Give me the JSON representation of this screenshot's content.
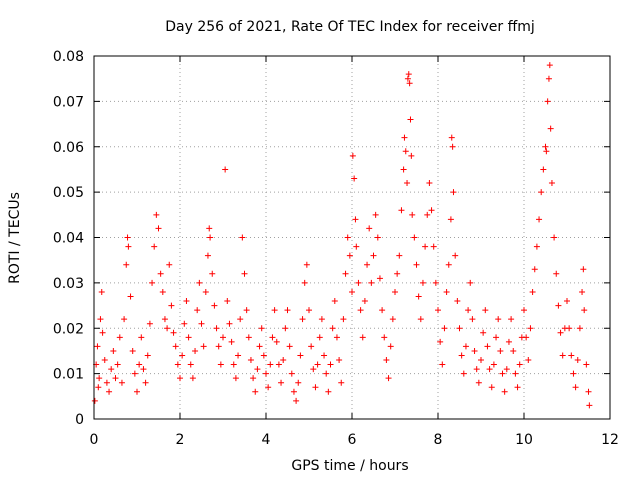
{
  "chart_data": {
    "type": "scatter",
    "title": "Day 256 of 2021, Rate Of TEC Index for receiver ffmj",
    "xlabel": "GPS time / hours",
    "ylabel": "ROTI / TECUs",
    "xlim": [
      0,
      12
    ],
    "ylim": [
      0,
      0.08
    ],
    "x_ticks": [
      0,
      2,
      4,
      6,
      8,
      10,
      12
    ],
    "x_tick_labels": [
      "0",
      "2",
      "4",
      "6",
      "8",
      "10",
      "12"
    ],
    "y_ticks": [
      0,
      0.01,
      0.02,
      0.03,
      0.04,
      0.05,
      0.06,
      0.07,
      0.08
    ],
    "y_tick_labels": [
      "0",
      "0.01",
      "0.02",
      "0.03",
      "0.04",
      "0.05",
      "0.06",
      "0.07",
      "0.08"
    ],
    "grid": true,
    "marker": "+",
    "series": [
      {
        "name": "ROTI",
        "color": "#ff0000",
        "points": [
          [
            0.02,
            0.004
          ],
          [
            0.05,
            0.012
          ],
          [
            0.08,
            0.016
          ],
          [
            0.1,
            0.007
          ],
          [
            0.12,
            0.009
          ],
          [
            0.15,
            0.022
          ],
          [
            0.18,
            0.028
          ],
          [
            0.2,
            0.019
          ],
          [
            0.25,
            0.013
          ],
          [
            0.3,
            0.008
          ],
          [
            0.35,
            0.006
          ],
          [
            0.4,
            0.011
          ],
          [
            0.45,
            0.015
          ],
          [
            0.5,
            0.009
          ],
          [
            0.55,
            0.012
          ],
          [
            0.6,
            0.018
          ],
          [
            0.65,
            0.008
          ],
          [
            0.7,
            0.022
          ],
          [
            0.75,
            0.034
          ],
          [
            0.78,
            0.04
          ],
          [
            0.8,
            0.038
          ],
          [
            0.85,
            0.027
          ],
          [
            0.9,
            0.015
          ],
          [
            0.95,
            0.01
          ],
          [
            1.0,
            0.006
          ],
          [
            1.05,
            0.012
          ],
          [
            1.1,
            0.018
          ],
          [
            1.15,
            0.011
          ],
          [
            1.2,
            0.008
          ],
          [
            1.25,
            0.014
          ],
          [
            1.3,
            0.021
          ],
          [
            1.35,
            0.03
          ],
          [
            1.4,
            0.038
          ],
          [
            1.45,
            0.045
          ],
          [
            1.5,
            0.042
          ],
          [
            1.55,
            0.032
          ],
          [
            1.6,
            0.028
          ],
          [
            1.65,
            0.022
          ],
          [
            1.7,
            0.02
          ],
          [
            1.75,
            0.034
          ],
          [
            1.8,
            0.025
          ],
          [
            1.85,
            0.019
          ],
          [
            1.9,
            0.016
          ],
          [
            1.95,
            0.012
          ],
          [
            2.0,
            0.009
          ],
          [
            2.05,
            0.014
          ],
          [
            2.1,
            0.021
          ],
          [
            2.15,
            0.026
          ],
          [
            2.2,
            0.018
          ],
          [
            2.25,
            0.012
          ],
          [
            2.3,
            0.009
          ],
          [
            2.35,
            0.015
          ],
          [
            2.4,
            0.024
          ],
          [
            2.45,
            0.03
          ],
          [
            2.5,
            0.021
          ],
          [
            2.55,
            0.016
          ],
          [
            2.6,
            0.028
          ],
          [
            2.65,
            0.036
          ],
          [
            2.68,
            0.042
          ],
          [
            2.7,
            0.04
          ],
          [
            2.75,
            0.032
          ],
          [
            2.8,
            0.025
          ],
          [
            2.85,
            0.02
          ],
          [
            2.9,
            0.016
          ],
          [
            2.95,
            0.012
          ],
          [
            3.0,
            0.018
          ],
          [
            3.05,
            0.055
          ],
          [
            3.1,
            0.026
          ],
          [
            3.15,
            0.021
          ],
          [
            3.2,
            0.017
          ],
          [
            3.25,
            0.012
          ],
          [
            3.3,
            0.009
          ],
          [
            3.35,
            0.014
          ],
          [
            3.4,
            0.022
          ],
          [
            3.45,
            0.04
          ],
          [
            3.5,
            0.032
          ],
          [
            3.55,
            0.024
          ],
          [
            3.6,
            0.018
          ],
          [
            3.65,
            0.013
          ],
          [
            3.7,
            0.009
          ],
          [
            3.75,
            0.006
          ],
          [
            3.8,
            0.011
          ],
          [
            3.85,
            0.016
          ],
          [
            3.9,
            0.02
          ],
          [
            3.95,
            0.014
          ],
          [
            4.0,
            0.01
          ],
          [
            4.05,
            0.007
          ],
          [
            4.1,
            0.012
          ],
          [
            4.15,
            0.018
          ],
          [
            4.2,
            0.024
          ],
          [
            4.25,
            0.017
          ],
          [
            4.3,
            0.012
          ],
          [
            4.35,
            0.008
          ],
          [
            4.4,
            0.013
          ],
          [
            4.45,
            0.02
          ],
          [
            4.5,
            0.024
          ],
          [
            4.55,
            0.016
          ],
          [
            4.6,
            0.01
          ],
          [
            4.65,
            0.006
          ],
          [
            4.7,
            0.004
          ],
          [
            4.75,
            0.008
          ],
          [
            4.8,
            0.014
          ],
          [
            4.85,
            0.022
          ],
          [
            4.9,
            0.03
          ],
          [
            4.95,
            0.034
          ],
          [
            5.0,
            0.024
          ],
          [
            5.05,
            0.016
          ],
          [
            5.1,
            0.011
          ],
          [
            5.15,
            0.007
          ],
          [
            5.2,
            0.012
          ],
          [
            5.25,
            0.018
          ],
          [
            5.3,
            0.022
          ],
          [
            5.35,
            0.014
          ],
          [
            5.4,
            0.01
          ],
          [
            5.45,
            0.006
          ],
          [
            5.5,
            0.012
          ],
          [
            5.55,
            0.02
          ],
          [
            5.6,
            0.026
          ],
          [
            5.65,
            0.018
          ],
          [
            5.7,
            0.013
          ],
          [
            5.75,
            0.008
          ],
          [
            5.8,
            0.022
          ],
          [
            5.85,
            0.032
          ],
          [
            5.9,
            0.04
          ],
          [
            5.95,
            0.036
          ],
          [
            6.0,
            0.028
          ],
          [
            6.02,
            0.058
          ],
          [
            6.05,
            0.053
          ],
          [
            6.08,
            0.044
          ],
          [
            6.1,
            0.038
          ],
          [
            6.15,
            0.03
          ],
          [
            6.2,
            0.024
          ],
          [
            6.25,
            0.018
          ],
          [
            6.3,
            0.026
          ],
          [
            6.35,
            0.034
          ],
          [
            6.4,
            0.042
          ],
          [
            6.45,
            0.03
          ],
          [
            6.5,
            0.036
          ],
          [
            6.55,
            0.045
          ],
          [
            6.6,
            0.04
          ],
          [
            6.65,
            0.031
          ],
          [
            6.7,
            0.024
          ],
          [
            6.75,
            0.018
          ],
          [
            6.8,
            0.013
          ],
          [
            6.85,
            0.009
          ],
          [
            6.9,
            0.016
          ],
          [
            6.95,
            0.022
          ],
          [
            7.0,
            0.028
          ],
          [
            7.05,
            0.032
          ],
          [
            7.1,
            0.036
          ],
          [
            7.15,
            0.046
          ],
          [
            7.2,
            0.055
          ],
          [
            7.22,
            0.062
          ],
          [
            7.25,
            0.059
          ],
          [
            7.28,
            0.052
          ],
          [
            7.3,
            0.075
          ],
          [
            7.32,
            0.076
          ],
          [
            7.34,
            0.074
          ],
          [
            7.36,
            0.066
          ],
          [
            7.38,
            0.058
          ],
          [
            7.4,
            0.045
          ],
          [
            7.45,
            0.04
          ],
          [
            7.5,
            0.034
          ],
          [
            7.55,
            0.027
          ],
          [
            7.6,
            0.022
          ],
          [
            7.65,
            0.03
          ],
          [
            7.7,
            0.038
          ],
          [
            7.75,
            0.045
          ],
          [
            7.8,
            0.052
          ],
          [
            7.85,
            0.046
          ],
          [
            7.9,
            0.038
          ],
          [
            7.95,
            0.03
          ],
          [
            8.0,
            0.024
          ],
          [
            8.05,
            0.017
          ],
          [
            8.1,
            0.012
          ],
          [
            8.15,
            0.02
          ],
          [
            8.2,
            0.028
          ],
          [
            8.25,
            0.034
          ],
          [
            8.3,
            0.044
          ],
          [
            8.32,
            0.062
          ],
          [
            8.34,
            0.06
          ],
          [
            8.36,
            0.05
          ],
          [
            8.4,
            0.036
          ],
          [
            8.45,
            0.026
          ],
          [
            8.5,
            0.02
          ],
          [
            8.55,
            0.014
          ],
          [
            8.6,
            0.01
          ],
          [
            8.65,
            0.016
          ],
          [
            8.7,
            0.024
          ],
          [
            8.75,
            0.03
          ],
          [
            8.8,
            0.022
          ],
          [
            8.85,
            0.015
          ],
          [
            8.9,
            0.011
          ],
          [
            8.95,
            0.008
          ],
          [
            9.0,
            0.013
          ],
          [
            9.05,
            0.019
          ],
          [
            9.1,
            0.024
          ],
          [
            9.15,
            0.016
          ],
          [
            9.2,
            0.011
          ],
          [
            9.25,
            0.007
          ],
          [
            9.3,
            0.012
          ],
          [
            9.35,
            0.018
          ],
          [
            9.4,
            0.022
          ],
          [
            9.45,
            0.015
          ],
          [
            9.5,
            0.01
          ],
          [
            9.55,
            0.006
          ],
          [
            9.6,
            0.011
          ],
          [
            9.65,
            0.017
          ],
          [
            9.7,
            0.022
          ],
          [
            9.75,
            0.015
          ],
          [
            9.8,
            0.01
          ],
          [
            9.85,
            0.007
          ],
          [
            9.9,
            0.012
          ],
          [
            9.95,
            0.018
          ],
          [
            10.0,
            0.024
          ],
          [
            10.05,
            0.018
          ],
          [
            10.1,
            0.013
          ],
          [
            10.15,
            0.02
          ],
          [
            10.2,
            0.028
          ],
          [
            10.25,
            0.033
          ],
          [
            10.3,
            0.038
          ],
          [
            10.35,
            0.044
          ],
          [
            10.4,
            0.05
          ],
          [
            10.45,
            0.055
          ],
          [
            10.5,
            0.06
          ],
          [
            10.52,
            0.059
          ],
          [
            10.55,
            0.07
          ],
          [
            10.58,
            0.075
          ],
          [
            10.6,
            0.078
          ],
          [
            10.62,
            0.064
          ],
          [
            10.65,
            0.052
          ],
          [
            10.7,
            0.04
          ],
          [
            10.75,
            0.032
          ],
          [
            10.8,
            0.025
          ],
          [
            10.85,
            0.019
          ],
          [
            10.9,
            0.014
          ],
          [
            10.95,
            0.02
          ],
          [
            11.0,
            0.026
          ],
          [
            11.05,
            0.02
          ],
          [
            11.1,
            0.014
          ],
          [
            11.15,
            0.01
          ],
          [
            11.2,
            0.007
          ],
          [
            11.25,
            0.013
          ],
          [
            11.3,
            0.02
          ],
          [
            11.35,
            0.028
          ],
          [
            11.38,
            0.033
          ],
          [
            11.4,
            0.024
          ],
          [
            11.45,
            0.012
          ],
          [
            11.5,
            0.006
          ],
          [
            11.52,
            0.003
          ]
        ]
      }
    ]
  }
}
